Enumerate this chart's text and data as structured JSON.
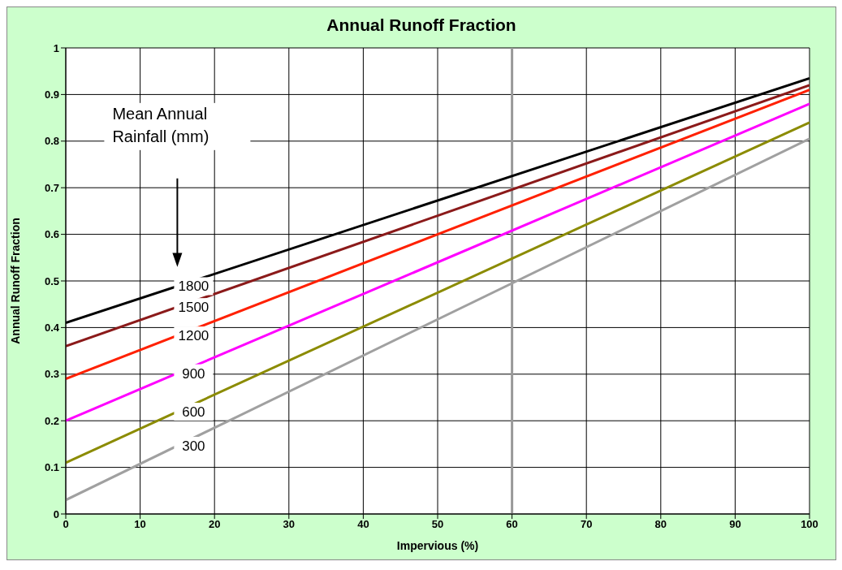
{
  "chart_data": {
    "type": "line",
    "title": "Annual Runoff Fraction",
    "xlabel": "Impervious (%)",
    "ylabel": "Annual Runoff Fraction",
    "legend_title": "Mean Annual Rainfall (mm)",
    "x": [
      0,
      100
    ],
    "series": [
      {
        "name": "1800",
        "color": "#000000",
        "values": [
          0.41,
          0.935
        ]
      },
      {
        "name": "1500",
        "color": "#8b1a1a",
        "values": [
          0.36,
          0.92
        ]
      },
      {
        "name": "1200",
        "color": "#ff2000",
        "values": [
          0.29,
          0.91
        ]
      },
      {
        "name": "900",
        "color": "#ff00ff",
        "values": [
          0.2,
          0.88
        ]
      },
      {
        "name": "600",
        "color": "#8b8b00",
        "values": [
          0.11,
          0.84
        ]
      },
      {
        "name": "300",
        "color": "#a0a0a0",
        "values": [
          0.03,
          0.805
        ]
      }
    ],
    "xlim": [
      0,
      100
    ],
    "xticks": [
      0,
      10,
      20,
      30,
      40,
      50,
      60,
      70,
      80,
      90,
      100
    ],
    "ylim": [
      0,
      1
    ],
    "yticks": [
      0,
      0.1,
      0.2,
      0.3,
      0.4,
      0.5,
      0.6,
      0.7,
      0.8,
      0.9,
      1
    ],
    "ref_lines": [
      {
        "axis": "x",
        "value": 60,
        "label": null,
        "color": "#999999"
      }
    ],
    "grid": true,
    "legend": "left",
    "marker": "none",
    "line_style": "solid"
  }
}
